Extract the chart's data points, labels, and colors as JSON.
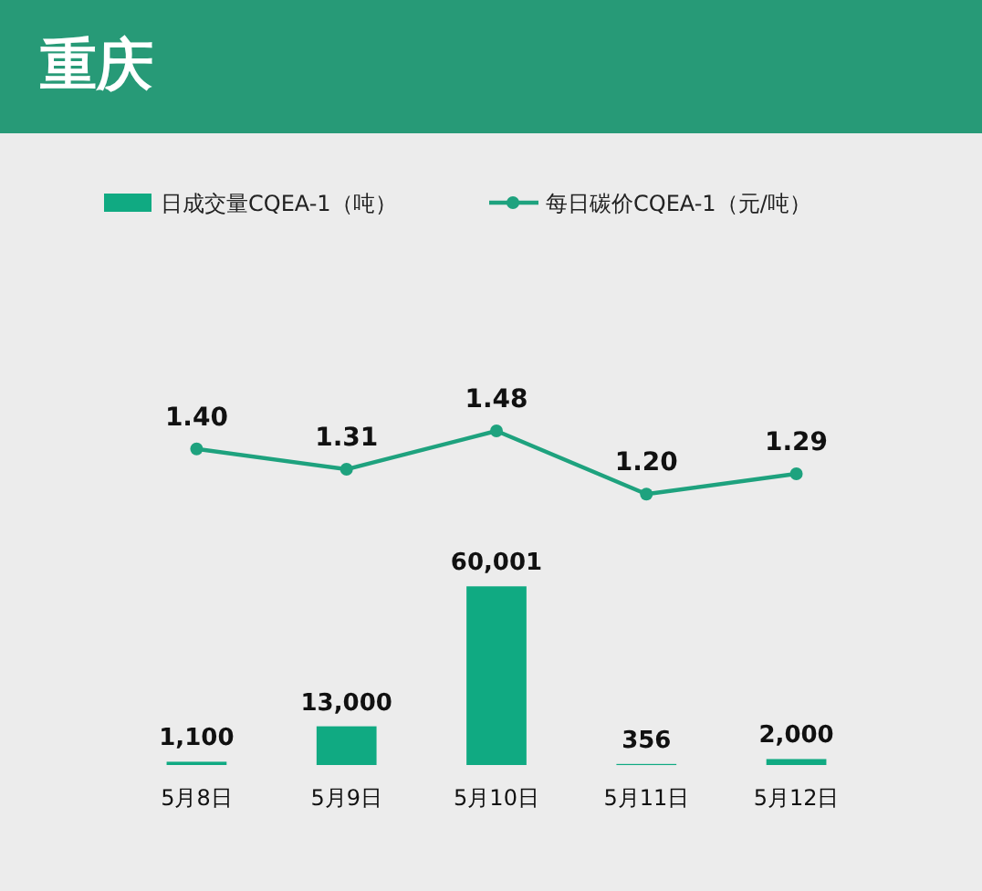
{
  "chart_data": [
    {
      "type": "line",
      "title": "重庆",
      "categories": [
        null,
        null,
        null,
        null,
        null
      ],
      "tick_labels": false,
      "legend": "top",
      "marker": "circle",
      "series": [
        {
          "name": "每日碳价CQEA-1（元/吨）",
          "color": "#1ea27e",
          "values": [
            1.4,
            1.31,
            1.48,
            1.2,
            1.29
          ],
          "value_labels": [
            "1.40",
            "1.31",
            "1.48",
            "1.20",
            "1.29"
          ]
        }
      ]
    },
    {
      "type": "bar",
      "categories": [
        "5月8日",
        "5月9日",
        "5月10日",
        "5月11日",
        "5月12日"
      ],
      "tick_labels": "x",
      "legend": "top",
      "series": [
        {
          "name": "日成交量CQEA-1（吨）",
          "color": "#10aa82",
          "values": [
            1100,
            13000,
            60001,
            356,
            2000
          ],
          "value_labels": [
            "1,100",
            "13,000",
            "60,001",
            "356",
            "2,000"
          ]
        }
      ]
    }
  ]
}
